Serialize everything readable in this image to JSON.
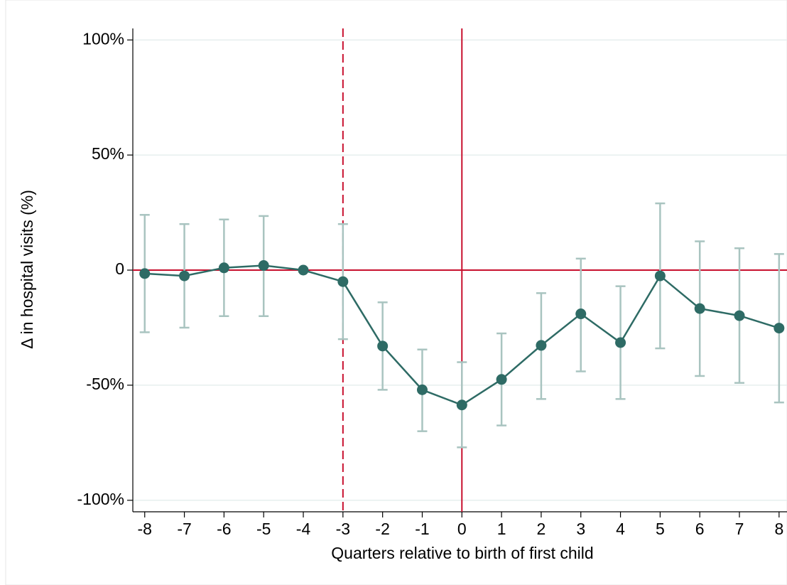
{
  "chart_data": {
    "type": "line",
    "x_label": "Quarters relative to  birth of first child",
    "y_label": "Δ in hospital visits (%)",
    "x": [
      -8,
      -7,
      -6,
      -5,
      -4,
      -3,
      -2,
      -1,
      0,
      1,
      2,
      3,
      4,
      5,
      6,
      7,
      8
    ],
    "series": [
      {
        "color": "#2e6b65",
        "ci_color": "#a9c4c0",
        "values": [
          -1.5,
          -2.5,
          1,
          2,
          0,
          -5,
          -33,
          -52,
          -58.6,
          -47.5,
          -32.7,
          -19,
          -31.5,
          -2.5,
          -16.7,
          -19.8,
          -25.2
        ],
        "lower": [
          -27,
          -25,
          -20,
          -20,
          null,
          -30,
          -52,
          -70,
          -77,
          -67.5,
          -56,
          -44,
          -56,
          -34,
          -46,
          -49,
          -57.5
        ],
        "upper": [
          24,
          20,
          22,
          23.5,
          null,
          20,
          -14,
          -34.5,
          -40,
          -27.5,
          -10,
          5,
          -7,
          29,
          12.5,
          9.5,
          7
        ]
      }
    ],
    "xlim": [
      -8.3,
      8.2
    ],
    "xticks": [
      -8,
      -7,
      -6,
      -5,
      -4,
      -3,
      -2,
      -1,
      0,
      1,
      2,
      3,
      4,
      5,
      6,
      7,
      8
    ],
    "ylim": [
      -105,
      105
    ],
    "yticks": [
      {
        "value": 100,
        "label": "100%"
      },
      {
        "value": 50,
        "label": "50%"
      },
      0,
      {
        "value": -50,
        "label": "-50%"
      },
      {
        "value": -100,
        "label": "-100%"
      }
    ],
    "grid": true,
    "reference_color": "#c8102e",
    "vlines": [
      {
        "x": -3,
        "style": "dashed"
      },
      {
        "x": 0,
        "style": "solid"
      }
    ],
    "hlines": [
      {
        "y": 0,
        "style": "solid"
      }
    ]
  }
}
